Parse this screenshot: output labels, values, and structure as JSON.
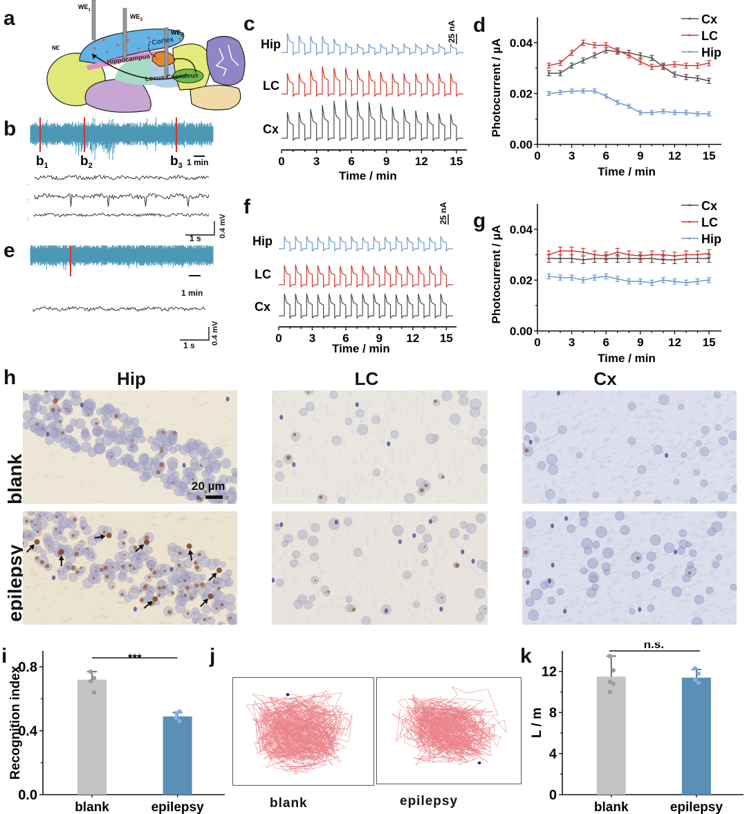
{
  "panels": {
    "a": {
      "letter": "a",
      "electrodes": [
        "WE1",
        "WE3",
        "WE2"
      ],
      "electrode_labels": [
        {
          "base": "WE",
          "sub": "1"
        },
        {
          "base": "WE",
          "sub": "3"
        },
        {
          "base": "WE",
          "sub": "2"
        }
      ],
      "regions": [
        "Cortex",
        "Hippocampus",
        "Locus Coeruleus"
      ],
      "ne_label": "NE"
    },
    "b": {
      "letter": "b",
      "markers": [
        {
          "base": "b",
          "sub": "1"
        },
        {
          "base": "b",
          "sub": "2"
        },
        {
          "base": "b",
          "sub": "3"
        }
      ],
      "time_scale": "1 min",
      "trace_labels": [
        {
          "base": "b",
          "sub": "1"
        },
        {
          "base": "b",
          "sub": "2"
        },
        {
          "base": "b",
          "sub": "3"
        }
      ],
      "scale_x": "1 s",
      "scale_y": "0.4 mV"
    },
    "e": {
      "letter": "e",
      "time_scale": "1 min",
      "scale_x": "1 s",
      "scale_y": "0.4 mV"
    },
    "c": {
      "letter": "c",
      "scale_bar": "25 nA",
      "traces": [
        "Hip",
        "LC",
        "Cx"
      ],
      "xlabel": "Time / min",
      "xticks": [
        "0",
        "3",
        "6",
        "9",
        "12",
        "15"
      ]
    },
    "f": {
      "letter": "f",
      "scale_bar": "25 nA",
      "traces": [
        "Hip",
        "LC",
        "Cx"
      ],
      "xlabel": "Time / min",
      "xticks": [
        "0",
        "3",
        "6",
        "9",
        "12",
        "15"
      ]
    },
    "h": {
      "letter": "h",
      "columns": [
        "Hip",
        "LC",
        "Cx"
      ],
      "rows": [
        "blank",
        "epilepsy"
      ],
      "scale_bar": "20 µm"
    },
    "j": {
      "letter": "j",
      "labels": [
        "blank",
        "epilepsy"
      ]
    }
  },
  "colors": {
    "Cx": "#4a4a4a",
    "LC": "#d0362e",
    "Hip": "#6a96cc",
    "eeg": "#4b98b6",
    "marker": "#d9302a",
    "bar_blank": "#c4c4c4",
    "bar_epilepsy": "#5b8fb5",
    "track": "#e8757c"
  },
  "chart_data": [
    {
      "id": "d",
      "letter": "d",
      "type": "line",
      "title": "",
      "xlabel": "Time / min",
      "ylabel": "Photocurrent / µA",
      "xlim": [
        0,
        15.6
      ],
      "ylim": [
        0,
        0.05
      ],
      "xticks": [
        0,
        3,
        6,
        9,
        12,
        15
      ],
      "yticks": [
        0.0,
        0.02,
        0.04
      ],
      "ytick_labels": [
        "0.00",
        "0.02",
        "0.04"
      ],
      "legend": "top-right",
      "x": [
        1,
        2,
        3,
        4,
        5,
        6,
        7,
        8,
        9,
        10,
        11,
        12,
        13,
        14,
        15
      ],
      "series": [
        {
          "name": "Cx",
          "values": [
            0.028,
            0.028,
            0.031,
            0.033,
            0.035,
            0.037,
            0.0365,
            0.036,
            0.035,
            0.034,
            0.0305,
            0.0275,
            0.0265,
            0.026,
            0.025
          ],
          "error": 0.001
        },
        {
          "name": "LC",
          "values": [
            0.031,
            0.032,
            0.036,
            0.04,
            0.039,
            0.039,
            0.037,
            0.035,
            0.0325,
            0.0305,
            0.031,
            0.0315,
            0.031,
            0.031,
            0.032
          ],
          "error": 0.001
        },
        {
          "name": "Hip",
          "values": [
            0.02,
            0.0205,
            0.021,
            0.021,
            0.021,
            0.019,
            0.0165,
            0.015,
            0.0125,
            0.0125,
            0.013,
            0.0125,
            0.0125,
            0.012,
            0.012
          ],
          "error": 0.0008
        }
      ]
    },
    {
      "id": "g",
      "letter": "g",
      "type": "line",
      "title": "",
      "xlabel": "Time / min",
      "ylabel": "Photocurrent / µA",
      "xlim": [
        0,
        15.6
      ],
      "ylim": [
        0,
        0.05
      ],
      "xticks": [
        0,
        3,
        6,
        9,
        12,
        15
      ],
      "yticks": [
        0.0,
        0.02,
        0.04
      ],
      "ytick_labels": [
        "0.00",
        "0.02",
        "0.04"
      ],
      "legend": "top-right",
      "x": [
        1,
        2,
        3,
        4,
        5,
        6,
        7,
        8,
        9,
        10,
        11,
        12,
        13,
        14,
        15
      ],
      "series": [
        {
          "name": "Cx",
          "values": [
            0.0285,
            0.0285,
            0.0285,
            0.028,
            0.0285,
            0.0285,
            0.0285,
            0.0285,
            0.0285,
            0.0285,
            0.028,
            0.028,
            0.0285,
            0.0285,
            0.0285
          ],
          "error": 0.0015
        },
        {
          "name": "LC",
          "values": [
            0.03,
            0.0315,
            0.0315,
            0.031,
            0.03,
            0.0295,
            0.031,
            0.03,
            0.0295,
            0.03,
            0.03,
            0.0295,
            0.03,
            0.03,
            0.0305
          ],
          "error": 0.0015
        },
        {
          "name": "Hip",
          "values": [
            0.0215,
            0.021,
            0.021,
            0.02,
            0.021,
            0.0215,
            0.0205,
            0.0195,
            0.0195,
            0.019,
            0.02,
            0.0195,
            0.019,
            0.0195,
            0.02
          ],
          "error": 0.001
        }
      ]
    },
    {
      "id": "i",
      "letter": "i",
      "type": "bar",
      "title": "",
      "xlabel": "",
      "ylabel": "Recognition index",
      "categories": [
        "blank",
        "epilepsy"
      ],
      "values": [
        0.72,
        0.49
      ],
      "errors": [
        0.05,
        0.025
      ],
      "points": [
        [
          0.77,
          0.73,
          0.71,
          0.64
        ],
        [
          0.51,
          0.52,
          0.48,
          0.46
        ]
      ],
      "ylim": [
        0,
        0.9
      ],
      "yticks": [
        0.0,
        0.4,
        0.8
      ],
      "ytick_labels": [
        "0.0",
        "0.4",
        "0.8"
      ],
      "significance": "***"
    },
    {
      "id": "k",
      "letter": "k",
      "type": "bar",
      "title": "",
      "xlabel": "",
      "ylabel": "L / m",
      "categories": [
        "blank",
        "epilepsy"
      ],
      "values": [
        11.5,
        11.4
      ],
      "errors": [
        2.0,
        0.8
      ],
      "points": [
        [
          13.5,
          12.1,
          11.0,
          10.8,
          10.0
        ],
        [
          12.3,
          11.8,
          11.2,
          10.9
        ]
      ],
      "ylim": [
        0,
        14
      ],
      "yticks": [
        0,
        4,
        8,
        12
      ],
      "ytick_labels": [
        "0",
        "4",
        "8",
        "12"
      ],
      "significance": "n.s."
    }
  ]
}
